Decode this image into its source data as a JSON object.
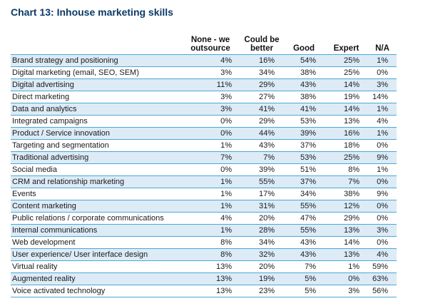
{
  "title": "Chart 13: Inhouse marketing skills",
  "columns": [
    {
      "line1": "None - we",
      "line2": "outsource"
    },
    {
      "line1": "Could be",
      "line2": "better"
    },
    {
      "line1": "",
      "line2": "Good"
    },
    {
      "line1": "",
      "line2": "Expert"
    },
    {
      "line1": "",
      "line2": "N/A"
    }
  ],
  "rows": [
    {
      "label": "Brand strategy and positioning",
      "values": [
        "4%",
        "16%",
        "54%",
        "25%",
        "1%"
      ]
    },
    {
      "label": "Digital marketing (email, SEO, SEM)",
      "values": [
        "3%",
        "34%",
        "38%",
        "25%",
        "0%"
      ]
    },
    {
      "label": "Digital advertising",
      "values": [
        "11%",
        "29%",
        "43%",
        "14%",
        "3%"
      ]
    },
    {
      "label": "Direct marketing",
      "values": [
        "3%",
        "27%",
        "38%",
        "19%",
        "14%"
      ]
    },
    {
      "label": "Data and analytics",
      "values": [
        "3%",
        "41%",
        "41%",
        "14%",
        "1%"
      ]
    },
    {
      "label": "Integrated campaigns",
      "values": [
        "0%",
        "29%",
        "53%",
        "13%",
        "4%"
      ]
    },
    {
      "label": "Product / Service innovation",
      "values": [
        "0%",
        "44%",
        "39%",
        "16%",
        "1%"
      ]
    },
    {
      "label": "Targeting and segmentation",
      "values": [
        "1%",
        "43%",
        "37%",
        "18%",
        "0%"
      ]
    },
    {
      "label": "Traditional advertising",
      "values": [
        "7%",
        "7%",
        "53%",
        "25%",
        "9%"
      ]
    },
    {
      "label": "Social media",
      "values": [
        "0%",
        "39%",
        "51%",
        "8%",
        "1%"
      ]
    },
    {
      "label": "CRM and relationship marketing",
      "values": [
        "1%",
        "55%",
        "37%",
        "7%",
        "0%"
      ]
    },
    {
      "label": "Events",
      "values": [
        "1%",
        "17%",
        "34%",
        "38%",
        "9%"
      ]
    },
    {
      "label": "Content marketing",
      "values": [
        "1%",
        "31%",
        "55%",
        "12%",
        "0%"
      ]
    },
    {
      "label": "Public relations / corporate communications",
      "values": [
        "4%",
        "20%",
        "47%",
        "29%",
        "0%"
      ]
    },
    {
      "label": "Internal communications",
      "values": [
        "1%",
        "28%",
        "55%",
        "13%",
        "3%"
      ]
    },
    {
      "label": "Web development",
      "values": [
        "8%",
        "34%",
        "43%",
        "14%",
        "0%"
      ]
    },
    {
      "label": "User experience/ User interface design",
      "values": [
        "8%",
        "32%",
        "43%",
        "13%",
        "4%"
      ]
    },
    {
      "label": "Virtual reality",
      "values": [
        "13%",
        "20%",
        "7%",
        "1%",
        "59%"
      ]
    },
    {
      "label": "Augmented reality",
      "values": [
        "13%",
        "19%",
        "5%",
        "0%",
        "63%"
      ]
    },
    {
      "label": "Voice activated technology",
      "values": [
        "13%",
        "23%",
        "5%",
        "3%",
        "56%"
      ]
    }
  ],
  "colors": {
    "title": "#0a3a66",
    "rule": "#4aa8d8",
    "band": "#dcebf6"
  }
}
